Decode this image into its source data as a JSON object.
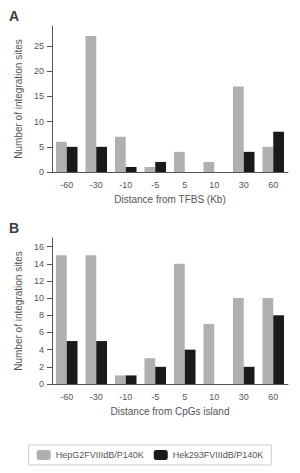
{
  "chart_data": [
    {
      "type": "bar",
      "title": "A",
      "categories": [
        "-60",
        "-30",
        "-10",
        "-5",
        "5",
        "10",
        "30",
        "60"
      ],
      "series": [
        {
          "name": "HepG2FVIIIdB/P140K",
          "color": "#b0b0b0",
          "values": [
            6,
            27,
            7,
            1,
            4,
            2,
            17,
            5
          ]
        },
        {
          "name": "Hek293FVIIIdB/P140K",
          "color": "#1a1a1a",
          "values": [
            5,
            5,
            1,
            2,
            0,
            0,
            4,
            8
          ]
        }
      ],
      "xlabel": "Distance from TFBS (Kb)",
      "ylabel": "Number of integration sites",
      "ylim": [
        0,
        29
      ],
      "yticks": [
        0,
        5,
        10,
        15,
        20,
        25
      ],
      "grid": false
    },
    {
      "type": "bar",
      "title": "B",
      "categories": [
        "-60",
        "-30",
        "-10",
        "-5",
        "5",
        "10",
        "30",
        "60"
      ],
      "series": [
        {
          "name": "HepG2FVIIIdB/P140K",
          "color": "#b0b0b0",
          "values": [
            15,
            15,
            1,
            3,
            14,
            7,
            10,
            10
          ]
        },
        {
          "name": "Hek293FVIIIdB/P140K",
          "color": "#1a1a1a",
          "values": [
            5,
            5,
            1,
            2,
            4,
            0,
            2,
            8
          ]
        }
      ],
      "xlabel": "Distance from CpGs island",
      "ylabel": "Number of integration sites",
      "ylim": [
        0,
        17
      ],
      "yticks": [
        0,
        2,
        4,
        6,
        8,
        10,
        12,
        14,
        16
      ],
      "grid": false,
      "legend": "bottom"
    }
  ]
}
